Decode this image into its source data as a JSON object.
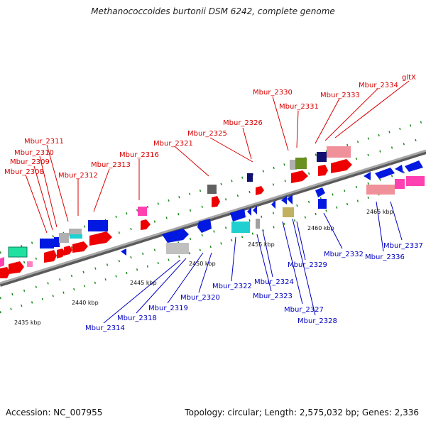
{
  "title": "Methanococcoides burtonii DSM 6242, complete genome",
  "footer": {
    "accession": "Accession: NC_007955",
    "topology": "Topology: circular; Length: 2,575,032 bp; Genes: 2,336"
  },
  "colors": {
    "backbone": "#8c8c8c",
    "tick": "#1a8a1a",
    "forward_label": "#d80000",
    "reverse_label": "#0000c0",
    "gene_red": "#ee0000",
    "gene_blue": "#0018e0",
    "gene_gray": "#b0b0b0",
    "gene_darkgray": "#606060",
    "gene_green": "#6a9020",
    "gene_pink": "#ff40b0",
    "gene_salmon": "#f0909a",
    "gene_cyan": "#20d0d0",
    "gene_teal": "#20e0a0",
    "gene_navy": "#101070",
    "gene_khaki": "#c0b060"
  },
  "scale_labels": [
    "2435 kbp",
    "2440 kbp",
    "2445 kbp",
    "2450 kbp",
    "2455 kbp",
    "2460 kbp",
    "2465 kbp"
  ],
  "forward_genes": [
    "Mbur_2308",
    "Mbur_2309",
    "Mbur_2310",
    "Mbur_2311",
    "Mbur_2312",
    "Mbur_2313",
    "Mbur_2316",
    "Mbur_2321",
    "Mbur_2325",
    "Mbur_2326",
    "Mbur_2330",
    "Mbur_2331",
    "Mbur_2333",
    "Mbur_2334",
    "gltX"
  ],
  "reverse_genes": [
    "Mbur_2314",
    "Mbur_2318",
    "Mbur_2319",
    "Mbur_2320",
    "Mbur_2322",
    "Mbur_2323",
    "Mbur_2324",
    "Mbur_2327",
    "Mbur_2328",
    "Mbur_2329",
    "Mbur_2332",
    "Mbur_2336",
    "Mbur_2337"
  ]
}
